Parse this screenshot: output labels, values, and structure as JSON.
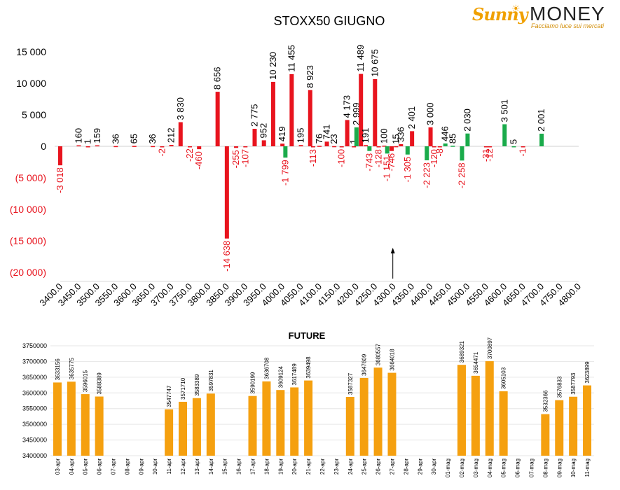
{
  "brand": {
    "sunny": "Sunny",
    "money": "MONEY",
    "tagline": "Facciamo luce sui mercati",
    "color_orange": "#f0a000"
  },
  "colors": {
    "put_bar": "#e8141e",
    "call_bar": "#1aab4b",
    "future_bar": "#f5a00f",
    "negative_text": "#e8141e",
    "text": "#000000"
  },
  "chart_data": [
    {
      "type": "bar",
      "title": "STOXX50 GIUGNO",
      "ylim": [
        -20000,
        15000
      ],
      "yticks": [
        "15 000",
        "10 000",
        "5 000",
        "0",
        "(5 000)",
        "(10 000)",
        "(15 000)",
        "(20 000)"
      ],
      "categories": [
        "3400.0",
        "3450.0",
        "3500.0",
        "3550.0",
        "3600.0",
        "3650.0",
        "3700.0",
        "3750.0",
        "3800.0",
        "3850.0",
        "3900.0",
        "3950.0",
        "4000.0",
        "4050.0",
        "4100.0",
        "4150.0",
        "4200.0",
        "4250.0",
        "4300.0",
        "4350.0",
        "4400.0",
        "4450.0",
        "4500.0",
        "4550.0",
        "4600.0",
        "4650.0",
        "4700.0",
        "4750.0",
        "4800.0"
      ],
      "marker_at": "4300.0",
      "bars": [
        {
          "x": 3400,
          "v": -3018,
          "label": "-3 018",
          "color": "red"
        },
        {
          "x": 3450,
          "v": 160,
          "label": "160",
          "color": "red"
        },
        {
          "x": 3475,
          "v": 1,
          "label": "1",
          "color": "red"
        },
        {
          "x": 3500,
          "v": 159,
          "label": "159",
          "color": "red"
        },
        {
          "x": 3550,
          "v": 36,
          "label": "36",
          "color": "red"
        },
        {
          "x": 3600,
          "v": 65,
          "label": "65",
          "color": "red"
        },
        {
          "x": 3650,
          "v": 36,
          "label": "36",
          "color": "red"
        },
        {
          "x": 3675,
          "v": -2,
          "label": "-2",
          "color": "red"
        },
        {
          "x": 3700,
          "v": 212,
          "label": "212",
          "color": "red"
        },
        {
          "x": 3725,
          "v": 3830,
          "label": "3 830",
          "color": "red"
        },
        {
          "x": 3750,
          "v": -22,
          "label": "-22",
          "color": "red"
        },
        {
          "x": 3775,
          "v": -460,
          "label": "-460",
          "color": "red"
        },
        {
          "x": 3825,
          "v": 8656,
          "label": "8 656",
          "color": "red"
        },
        {
          "x": 3850,
          "v": -14638,
          "label": "-14 638",
          "color": "red"
        },
        {
          "x": 3875,
          "v": -255,
          "label": "-255",
          "color": "red"
        },
        {
          "x": 3900,
          "v": -107,
          "label": "-107",
          "color": "red"
        },
        {
          "x": 3925,
          "v": 2775,
          "label": "2 775",
          "color": "red"
        },
        {
          "x": 3950,
          "v": 952,
          "label": "952",
          "color": "red"
        },
        {
          "x": 3975,
          "v": 10230,
          "label": "10 230",
          "color": "red"
        },
        {
          "x": 4000,
          "v": 419,
          "label": "419",
          "color": "red"
        },
        {
          "x": 4008,
          "v": -1799,
          "label": "-1 799",
          "color": "green"
        },
        {
          "x": 4025,
          "v": 11455,
          "label": "11 455",
          "color": "red"
        },
        {
          "x": 4050,
          "v": 195,
          "label": "195",
          "color": "red"
        },
        {
          "x": 4075,
          "v": 8923,
          "label": "8 923",
          "color": "red"
        },
        {
          "x": 4083,
          "v": -113,
          "label": "-113",
          "color": "red"
        },
        {
          "x": 4100,
          "v": 76,
          "label": "76",
          "color": "red"
        },
        {
          "x": 4120,
          "v": 741,
          "label": "741",
          "color": "red"
        },
        {
          "x": 4140,
          "v": 23,
          "label": "23",
          "color": "red"
        },
        {
          "x": 4160,
          "v": -100,
          "label": "-100",
          "color": "red"
        },
        {
          "x": 4175,
          "v": 4173,
          "label": "4 173",
          "color": "red"
        },
        {
          "x": 4193,
          "v": 1,
          "label": "1",
          "color": "red"
        },
        {
          "x": 4200,
          "v": 2999,
          "label": "2 999",
          "color": "green"
        },
        {
          "x": 4212,
          "v": 11489,
          "label": "11 489",
          "color": "red"
        },
        {
          "x": 4225,
          "v": 191,
          "label": "191",
          "color": "red"
        },
        {
          "x": 4235,
          "v": -743,
          "label": "-743",
          "color": "green"
        },
        {
          "x": 4250,
          "v": 10675,
          "label": "10 675",
          "color": "red"
        },
        {
          "x": 4260,
          "v": -128,
          "label": "-128",
          "color": "red"
        },
        {
          "x": 4275,
          "v": 100,
          "label": "100",
          "color": "red"
        },
        {
          "x": 4283,
          "v": -1151,
          "label": "-1 151",
          "color": "green"
        },
        {
          "x": 4295,
          "v": -746,
          "label": "-746",
          "color": "red"
        },
        {
          "x": 4307,
          "v": 15,
          "label": "15",
          "color": "red"
        },
        {
          "x": 4320,
          "v": 336,
          "label": "336",
          "color": "red"
        },
        {
          "x": 4338,
          "v": -1305,
          "label": "-1 305",
          "color": "green"
        },
        {
          "x": 4350,
          "v": 2401,
          "label": "2 401",
          "color": "red"
        },
        {
          "x": 4390,
          "v": -2223,
          "label": "-2 223",
          "color": "green"
        },
        {
          "x": 4400,
          "v": 3000,
          "label": "3 000",
          "color": "red"
        },
        {
          "x": 4410,
          "v": -120,
          "label": "-120",
          "color": "red"
        },
        {
          "x": 4425,
          "v": -8,
          "label": "-8",
          "color": "red"
        },
        {
          "x": 4440,
          "v": 446,
          "label": "446",
          "color": "green"
        },
        {
          "x": 4460,
          "v": 85,
          "label": "85",
          "color": "green"
        },
        {
          "x": 4485,
          "v": -2258,
          "label": "-2 258",
          "color": "green"
        },
        {
          "x": 4500,
          "v": 2030,
          "label": "2 030",
          "color": "green"
        },
        {
          "x": 4550,
          "v": -31,
          "label": "-31",
          "color": "red"
        },
        {
          "x": 4560,
          "v": -12,
          "label": "-12",
          "color": "red"
        },
        {
          "x": 4600,
          "v": 3501,
          "label": "3 501",
          "color": "green"
        },
        {
          "x": 4625,
          "v": 5,
          "label": "5",
          "color": "green"
        },
        {
          "x": 4650,
          "v": -1,
          "label": "-1",
          "color": "red"
        },
        {
          "x": 4700,
          "v": 2001,
          "label": "2 001",
          "color": "green"
        }
      ]
    },
    {
      "type": "bar",
      "title": "FUTURE",
      "ylim": [
        3400000,
        3750000
      ],
      "yticks": [
        "3750000",
        "3700000",
        "3650000",
        "3600000",
        "3550000",
        "3500000",
        "3450000",
        "3400000"
      ],
      "categories": [
        "03-apr",
        "04-apr",
        "05-apr",
        "06-apr",
        "07-apr",
        "08-apr",
        "09-apr",
        "10-apr",
        "11-apr",
        "12-apr",
        "13-apr",
        "14-apr",
        "15-apr",
        "16-apr",
        "17-apr",
        "18-apr",
        "19-apr",
        "20-apr",
        "21-apr",
        "22-apr",
        "23-apr",
        "24-apr",
        "25-apr",
        "26-apr",
        "27-apr",
        "28-apr",
        "29-apr",
        "30-apr",
        "01-mag",
        "02-mag",
        "03-mag",
        "04-mag",
        "05-mag",
        "06-mag",
        "07-mag",
        "08-mag",
        "09-mag",
        "10-mag",
        "11-mag"
      ],
      "values": [
        3633156,
        3635775,
        3596015,
        3588389,
        null,
        null,
        null,
        null,
        3547747,
        3571710,
        3583389,
        3597831,
        null,
        null,
        3590199,
        3636708,
        3609124,
        3617489,
        3639498,
        null,
        null,
        3587327,
        3647609,
        3680557,
        3664018,
        null,
        null,
        null,
        null,
        3689321,
        3654471,
        3700897,
        3605103,
        null,
        null,
        3532366,
        3576833,
        3587793,
        3623899
      ]
    }
  ]
}
